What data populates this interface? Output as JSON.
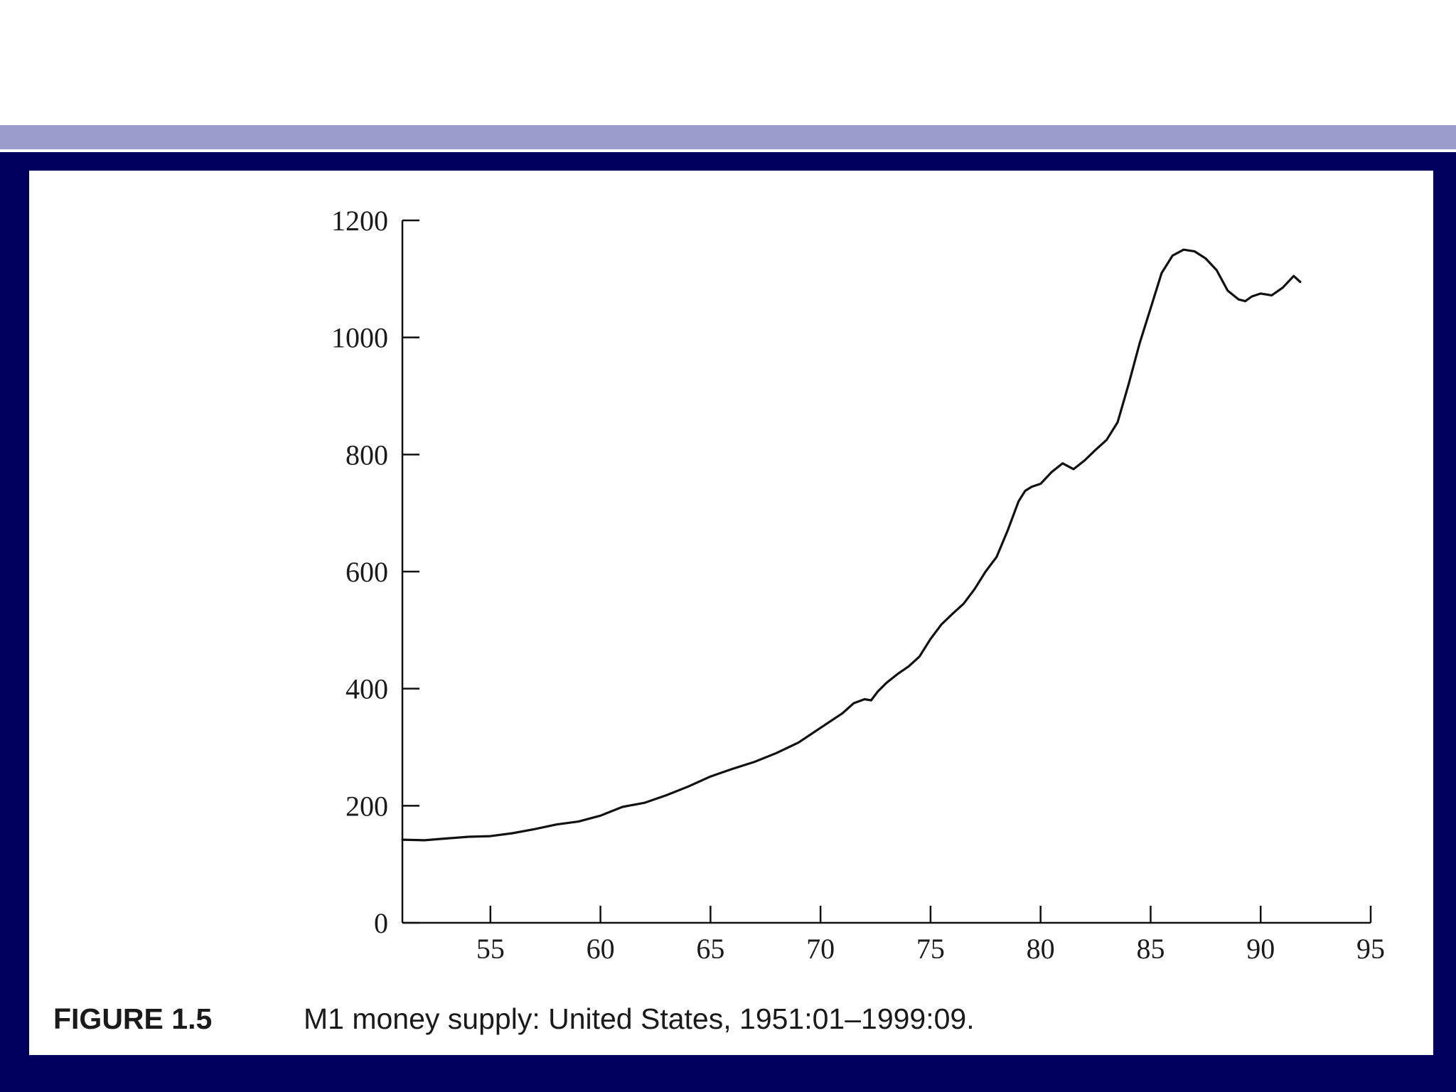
{
  "colors": {
    "frame": "#00005f",
    "accent_bar": "#9a9ccb",
    "panel": "#ffffff",
    "line": "#111111"
  },
  "caption": {
    "figure_label": "FIGURE 1.5",
    "text": "M1 money supply: United States, 1951:01–1999:09."
  },
  "chart_data": {
    "type": "line",
    "title": "M1 money supply: United States, 1951:01–1999:09.",
    "xlabel": "",
    "ylabel": "",
    "xlim": [
      51,
      95
    ],
    "ylim": [
      0,
      1200
    ],
    "x_ticks": [
      55,
      60,
      65,
      70,
      75,
      80,
      85,
      90,
      95
    ],
    "y_ticks": [
      0,
      200,
      400,
      600,
      800,
      1000,
      1200
    ],
    "grid": false,
    "series": [
      {
        "name": "M1",
        "x": [
          51,
          52,
          53,
          54,
          55,
          56,
          57,
          58,
          59,
          60,
          61,
          62,
          63,
          64,
          65,
          66,
          67,
          68,
          69,
          70,
          71,
          71.5,
          72,
          72.3,
          72.6,
          73,
          73.5,
          74,
          74.5,
          75,
          75.5,
          76,
          76.5,
          77,
          77.5,
          78,
          78.5,
          79,
          79.3,
          79.6,
          80,
          80.5,
          81,
          81.5,
          82,
          82.5,
          83,
          83.5,
          84,
          84.5,
          85,
          85.5,
          86,
          86.5,
          87,
          87.5,
          88,
          88.5,
          89,
          89.3,
          89.6,
          90,
          90.5,
          91,
          91.5,
          91.8
        ],
        "values": [
          142,
          141,
          144,
          147,
          148,
          153,
          160,
          168,
          173,
          183,
          198,
          205,
          218,
          233,
          250,
          263,
          275,
          290,
          308,
          333,
          358,
          375,
          382,
          380,
          395,
          410,
          425,
          438,
          455,
          485,
          510,
          528,
          545,
          570,
          600,
          625,
          670,
          720,
          738,
          745,
          750,
          770,
          785,
          775,
          790,
          808,
          825,
          855,
          920,
          990,
          1050,
          1110,
          1140,
          1150,
          1147,
          1135,
          1115,
          1080,
          1065,
          1062,
          1070,
          1075,
          1072,
          1085,
          1105,
          1095
        ]
      }
    ]
  }
}
